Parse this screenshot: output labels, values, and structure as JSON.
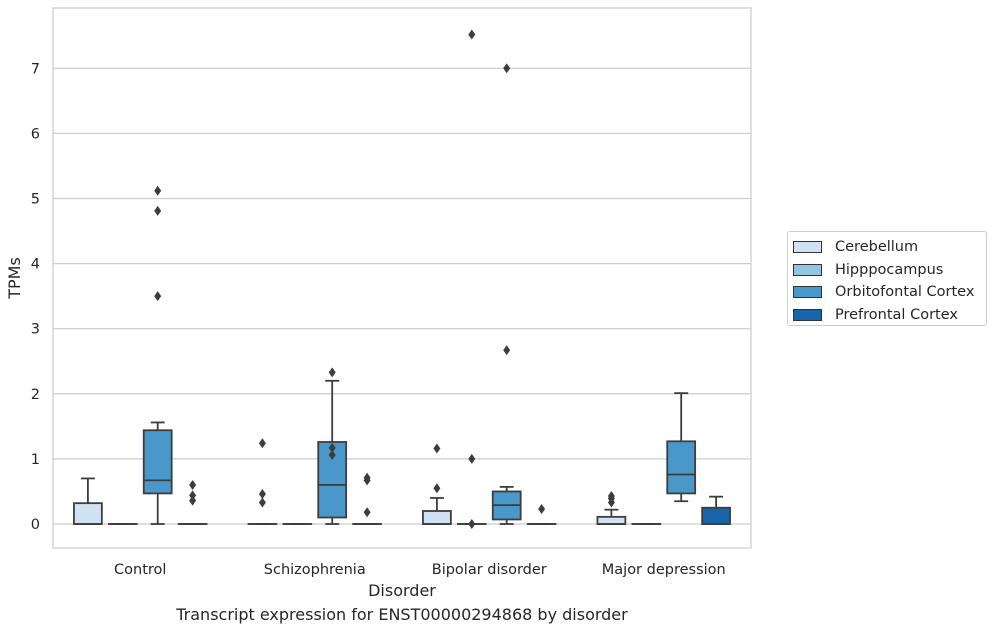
{
  "chart_data": {
    "type": "box",
    "title": "",
    "caption": "Transcript expression for ENST00000294868 by disorder",
    "xlabel": "Disorder",
    "ylabel": "TPMs",
    "ylim": [
      -0.37,
      7.9
    ],
    "yticks": [
      "0",
      "1",
      "2",
      "3",
      "4",
      "5",
      "6",
      "7"
    ],
    "categories": [
      "Control",
      "Schizophrenia",
      "Bipolar disorder",
      "Major depression"
    ],
    "grid": "horizontal",
    "legend_position": "right",
    "series": [
      {
        "name": "Cerebellum",
        "color": "#d0e1f2",
        "boxes": [
          {
            "q1": 0,
            "median": 0,
            "q3": 0.32,
            "whislo": 0,
            "whishi": 0.7,
            "fliers": []
          },
          {
            "q1": 0,
            "median": 0,
            "q3": 0,
            "whislo": 0,
            "whishi": 0,
            "fliers": [
              1.24,
              0.46,
              0.33
            ]
          },
          {
            "q1": 0,
            "median": 0,
            "q3": 0.2,
            "whislo": 0,
            "whishi": 0.4,
            "fliers": [
              1.16,
              0.55
            ]
          },
          {
            "q1": 0,
            "median": 0,
            "q3": 0.11,
            "whislo": 0,
            "whishi": 0.22,
            "fliers": [
              0.43,
              0.39,
              0.33
            ]
          }
        ]
      },
      {
        "name": "Hipppocampus",
        "color": "#94c4df",
        "boxes": [
          {
            "q1": 0,
            "median": 0,
            "q3": 0,
            "whislo": 0,
            "whishi": 0,
            "fliers": []
          },
          {
            "q1": 0,
            "median": 0,
            "q3": 0,
            "whislo": 0,
            "whishi": 0,
            "fliers": []
          },
          {
            "q1": 0,
            "median": 0,
            "q3": 0,
            "whislo": 0,
            "whishi": 0,
            "fliers": [
              7.52,
              1.0,
              0.0
            ]
          },
          {
            "q1": 0,
            "median": 0,
            "q3": 0,
            "whislo": 0,
            "whishi": 0,
            "fliers": []
          }
        ]
      },
      {
        "name": "Orbitofontal Cortex",
        "color": "#4a98c9",
        "boxes": [
          {
            "q1": 0.47,
            "median": 0.67,
            "q3": 1.44,
            "whislo": 0,
            "whishi": 1.56,
            "fliers": [
              5.12,
              4.81,
              3.5
            ]
          },
          {
            "q1": 0.1,
            "median": 0.6,
            "q3": 1.26,
            "whislo": 0,
            "whishi": 2.2,
            "fliers": [
              2.33,
              1.17,
              1.06
            ]
          },
          {
            "q1": 0.07,
            "median": 0.29,
            "q3": 0.5,
            "whislo": 0,
            "whishi": 0.57,
            "fliers": [
              7.0,
              2.67
            ]
          },
          {
            "q1": 0.47,
            "median": 0.76,
            "q3": 1.27,
            "whislo": 0.35,
            "whishi": 2.01,
            "fliers": []
          }
        ]
      },
      {
        "name": "Prefrontal Cortex",
        "color": "#1764ab",
        "boxes": [
          {
            "q1": 0,
            "median": 0,
            "q3": 0,
            "whislo": 0,
            "whishi": 0,
            "fliers": [
              0.6,
              0.44,
              0.36
            ]
          },
          {
            "q1": 0,
            "median": 0,
            "q3": 0,
            "whislo": 0,
            "whishi": 0,
            "fliers": [
              0.71,
              0.67,
              0.18
            ]
          },
          {
            "q1": 0,
            "median": 0,
            "q3": 0,
            "whislo": 0,
            "whishi": 0,
            "fliers": [
              0.23
            ]
          },
          {
            "q1": 0,
            "median": 0,
            "q3": 0.25,
            "whislo": 0,
            "whishi": 0.42,
            "fliers": []
          }
        ]
      }
    ]
  }
}
